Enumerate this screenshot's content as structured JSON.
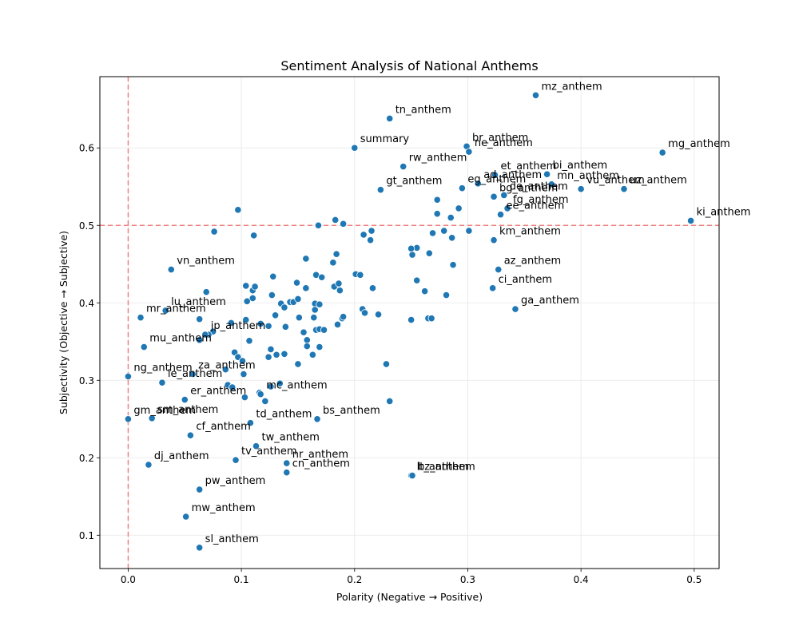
{
  "chart_data": {
    "type": "scatter",
    "title": "Sentiment Analysis of National Anthems",
    "xlabel": "Polarity (Negative → Positive)",
    "ylabel": "Subjectivity (Objective → Subjective)",
    "xlim": [
      -0.025,
      0.522
    ],
    "ylim": [
      0.057,
      0.692
    ],
    "x_ticks": [
      0.0,
      0.1,
      0.2,
      0.3,
      0.4,
      0.5
    ],
    "x_tick_labels": [
      "0.0",
      "0.1",
      "0.2",
      "0.3",
      "0.4",
      "0.5"
    ],
    "y_ticks": [
      0.1,
      0.2,
      0.3,
      0.4,
      0.5,
      0.6
    ],
    "y_tick_labels": [
      "0.1",
      "0.2",
      "0.3",
      "0.4",
      "0.5",
      "0.6"
    ],
    "grid": true,
    "reference_lines": [
      {
        "axis": "x",
        "value": 0.0,
        "color": "#f08080",
        "style": "dashed"
      },
      {
        "axis": "y",
        "value": 0.5,
        "color": "#f08080",
        "style": "dashed"
      }
    ],
    "marker_color": "#1f77b4",
    "labeled_points": [
      {
        "label": "mz_anthem",
        "x": 0.36,
        "y": 0.668
      },
      {
        "label": "tn_anthem",
        "x": 0.231,
        "y": 0.638
      },
      {
        "label": "summary",
        "x": 0.2,
        "y": 0.6
      },
      {
        "label": "br_anthem",
        "x": 0.299,
        "y": 0.602
      },
      {
        "label": "ne_anthem",
        "x": 0.301,
        "y": 0.595
      },
      {
        "label": "mg_anthem",
        "x": 0.472,
        "y": 0.594
      },
      {
        "label": "rw_anthem",
        "x": 0.243,
        "y": 0.576
      },
      {
        "label": "et_anthem",
        "x": 0.324,
        "y": 0.565
      },
      {
        "label": "bi_anthem",
        "x": 0.37,
        "y": 0.566
      },
      {
        "label": "ad_anthem",
        "x": 0.309,
        "y": 0.554
      },
      {
        "label": "mn_anthem",
        "x": 0.374,
        "y": 0.553
      },
      {
        "label": "eg_anthem",
        "x": 0.295,
        "y": 0.548
      },
      {
        "label": "vu_anthem",
        "x": 0.4,
        "y": 0.547
      },
      {
        "label": "uz_anthem",
        "x": 0.438,
        "y": 0.547
      },
      {
        "label": "gt_anthem",
        "x": 0.223,
        "y": 0.546
      },
      {
        "label": "bg_anthem",
        "x": 0.323,
        "y": 0.537
      },
      {
        "label": "de_anthem",
        "x": 0.332,
        "y": 0.539
      },
      {
        "label": "fg_anthem",
        "x": 0.335,
        "y": 0.522
      },
      {
        "label": "ee_anthem",
        "x": 0.329,
        "y": 0.514
      },
      {
        "label": "ki_anthem",
        "x": 0.497,
        "y": 0.506
      },
      {
        "label": "km_anthem",
        "x": 0.323,
        "y": 0.481
      },
      {
        "label": "az_anthem",
        "x": 0.327,
        "y": 0.443
      },
      {
        "label": "vn_anthem",
        "x": 0.038,
        "y": 0.443
      },
      {
        "label": "ci_anthem",
        "x": 0.322,
        "y": 0.419
      },
      {
        "label": "ga_anthem",
        "x": 0.342,
        "y": 0.392
      },
      {
        "label": "lu_anthem",
        "x": 0.033,
        "y": 0.39
      },
      {
        "label": "mr_anthem",
        "x": 0.011,
        "y": 0.381
      },
      {
        "label": "jp_anthem",
        "x": 0.068,
        "y": 0.359
      },
      {
        "label": "mu_anthem",
        "x": 0.014,
        "y": 0.343
      },
      {
        "label": "ng_anthem",
        "x": 0.0,
        "y": 0.305
      },
      {
        "label": "le_anthem",
        "x": 0.03,
        "y": 0.297
      },
      {
        "label": "za_anthem",
        "x": 0.057,
        "y": 0.308
      },
      {
        "label": "er_anthem",
        "x": 0.05,
        "y": 0.275
      },
      {
        "label": "mc_anthem",
        "x": 0.117,
        "y": 0.282
      },
      {
        "label": "gm_anthem",
        "x": 0.0,
        "y": 0.25
      },
      {
        "label": "sm_anthem",
        "x": 0.021,
        "y": 0.251
      },
      {
        "label": "td_anthem",
        "x": 0.108,
        "y": 0.245
      },
      {
        "label": "bs_anthem",
        "x": 0.167,
        "y": 0.25
      },
      {
        "label": "cf_anthem",
        "x": 0.055,
        "y": 0.229
      },
      {
        "label": "tw_anthem",
        "x": 0.113,
        "y": 0.215
      },
      {
        "label": "tv_anthem",
        "x": 0.095,
        "y": 0.197
      },
      {
        "label": "nr_anthem",
        "x": 0.14,
        "y": 0.193
      },
      {
        "label": "cn_anthem",
        "x": 0.14,
        "y": 0.181
      },
      {
        "label": "dj_anthem",
        "x": 0.018,
        "y": 0.191
      },
      {
        "label": "lt_anthem",
        "x": 0.25,
        "y": 0.177
      },
      {
        "label": "bz_anthem",
        "x": 0.251,
        "y": 0.177
      },
      {
        "label": "pw_anthem",
        "x": 0.063,
        "y": 0.159
      },
      {
        "label": "mw_anthem",
        "x": 0.051,
        "y": 0.124
      },
      {
        "label": "sl_anthem",
        "x": 0.063,
        "y": 0.084
      }
    ],
    "unlabeled_points": [
      {
        "x": 0.097,
        "y": 0.52
      },
      {
        "x": 0.076,
        "y": 0.492
      },
      {
        "x": 0.111,
        "y": 0.487
      },
      {
        "x": 0.168,
        "y": 0.5
      },
      {
        "x": 0.183,
        "y": 0.507
      },
      {
        "x": 0.19,
        "y": 0.502
      },
      {
        "x": 0.208,
        "y": 0.488
      },
      {
        "x": 0.214,
        "y": 0.481
      },
      {
        "x": 0.215,
        "y": 0.493
      },
      {
        "x": 0.157,
        "y": 0.457
      },
      {
        "x": 0.181,
        "y": 0.452
      },
      {
        "x": 0.184,
        "y": 0.463
      },
      {
        "x": 0.201,
        "y": 0.437
      },
      {
        "x": 0.205,
        "y": 0.436
      },
      {
        "x": 0.166,
        "y": 0.436
      },
      {
        "x": 0.171,
        "y": 0.433
      },
      {
        "x": 0.128,
        "y": 0.434
      },
      {
        "x": 0.157,
        "y": 0.419
      },
      {
        "x": 0.149,
        "y": 0.426
      },
      {
        "x": 0.182,
        "y": 0.421
      },
      {
        "x": 0.186,
        "y": 0.425
      },
      {
        "x": 0.187,
        "y": 0.416
      },
      {
        "x": 0.216,
        "y": 0.419
      },
      {
        "x": 0.104,
        "y": 0.422
      },
      {
        "x": 0.11,
        "y": 0.416
      },
      {
        "x": 0.112,
        "y": 0.421
      },
      {
        "x": 0.127,
        "y": 0.41
      },
      {
        "x": 0.11,
        "y": 0.406
      },
      {
        "x": 0.105,
        "y": 0.402
      },
      {
        "x": 0.135,
        "y": 0.399
      },
      {
        "x": 0.138,
        "y": 0.394
      },
      {
        "x": 0.143,
        "y": 0.401
      },
      {
        "x": 0.146,
        "y": 0.401
      },
      {
        "x": 0.15,
        "y": 0.405
      },
      {
        "x": 0.165,
        "y": 0.399
      },
      {
        "x": 0.169,
        "y": 0.398
      },
      {
        "x": 0.165,
        "y": 0.391
      },
      {
        "x": 0.13,
        "y": 0.384
      },
      {
        "x": 0.151,
        "y": 0.381
      },
      {
        "x": 0.164,
        "y": 0.381
      },
      {
        "x": 0.189,
        "y": 0.38
      },
      {
        "x": 0.19,
        "y": 0.382
      },
      {
        "x": 0.207,
        "y": 0.392
      },
      {
        "x": 0.209,
        "y": 0.387
      },
      {
        "x": 0.221,
        "y": 0.385
      },
      {
        "x": 0.117,
        "y": 0.373
      },
      {
        "x": 0.124,
        "y": 0.37
      },
      {
        "x": 0.139,
        "y": 0.369
      },
      {
        "x": 0.185,
        "y": 0.372
      },
      {
        "x": 0.104,
        "y": 0.378
      },
      {
        "x": 0.091,
        "y": 0.374
      },
      {
        "x": 0.063,
        "y": 0.379
      },
      {
        "x": 0.069,
        "y": 0.414
      },
      {
        "x": 0.155,
        "y": 0.362
      },
      {
        "x": 0.166,
        "y": 0.365
      },
      {
        "x": 0.169,
        "y": 0.366
      },
      {
        "x": 0.173,
        "y": 0.365
      },
      {
        "x": 0.075,
        "y": 0.363
      },
      {
        "x": 0.071,
        "y": 0.359
      },
      {
        "x": 0.063,
        "y": 0.352
      },
      {
        "x": 0.107,
        "y": 0.351
      },
      {
        "x": 0.158,
        "y": 0.352
      },
      {
        "x": 0.158,
        "y": 0.344
      },
      {
        "x": 0.126,
        "y": 0.34
      },
      {
        "x": 0.169,
        "y": 0.343
      },
      {
        "x": 0.094,
        "y": 0.336
      },
      {
        "x": 0.097,
        "y": 0.33
      },
      {
        "x": 0.131,
        "y": 0.333
      },
      {
        "x": 0.138,
        "y": 0.334
      },
      {
        "x": 0.163,
        "y": 0.333
      },
      {
        "x": 0.124,
        "y": 0.33
      },
      {
        "x": 0.101,
        "y": 0.325
      },
      {
        "x": 0.15,
        "y": 0.321
      },
      {
        "x": 0.228,
        "y": 0.321
      },
      {
        "x": 0.086,
        "y": 0.314
      },
      {
        "x": 0.102,
        "y": 0.308
      },
      {
        "x": 0.088,
        "y": 0.294
      },
      {
        "x": 0.126,
        "y": 0.292
      },
      {
        "x": 0.134,
        "y": 0.296
      },
      {
        "x": 0.092,
        "y": 0.291
      },
      {
        "x": 0.103,
        "y": 0.278
      },
      {
        "x": 0.116,
        "y": 0.284
      },
      {
        "x": 0.121,
        "y": 0.273
      },
      {
        "x": 0.231,
        "y": 0.273
      },
      {
        "x": 0.255,
        "y": 0.471
      },
      {
        "x": 0.25,
        "y": 0.47
      },
      {
        "x": 0.251,
        "y": 0.462
      },
      {
        "x": 0.266,
        "y": 0.464
      },
      {
        "x": 0.269,
        "y": 0.49
      },
      {
        "x": 0.279,
        "y": 0.493
      },
      {
        "x": 0.286,
        "y": 0.484
      },
      {
        "x": 0.301,
        "y": 0.493
      },
      {
        "x": 0.285,
        "y": 0.51
      },
      {
        "x": 0.273,
        "y": 0.515
      },
      {
        "x": 0.292,
        "y": 0.522
      },
      {
        "x": 0.273,
        "y": 0.533
      },
      {
        "x": 0.287,
        "y": 0.449
      },
      {
        "x": 0.255,
        "y": 0.429
      },
      {
        "x": 0.262,
        "y": 0.415
      },
      {
        "x": 0.281,
        "y": 0.41
      },
      {
        "x": 0.25,
        "y": 0.378
      },
      {
        "x": 0.265,
        "y": 0.38
      },
      {
        "x": 0.268,
        "y": 0.38
      }
    ]
  }
}
